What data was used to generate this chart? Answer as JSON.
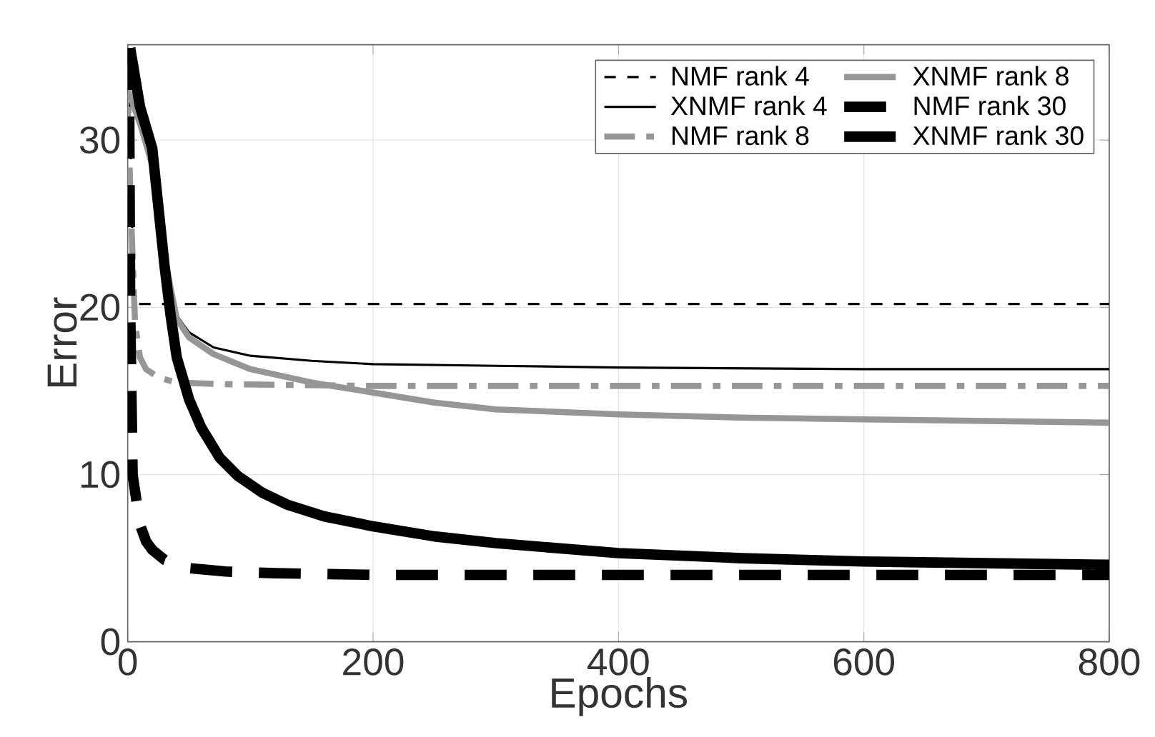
{
  "chart_data": {
    "type": "line",
    "xlabel": "Epochs",
    "ylabel": "Error",
    "xlim": [
      0,
      800
    ],
    "ylim": [
      0,
      35.7
    ],
    "xticks": [
      0,
      200,
      400,
      600,
      800
    ],
    "yticks": [
      0,
      10,
      20,
      30
    ],
    "grid": true,
    "legend": "top right",
    "marker": "none",
    "series": [
      {
        "name": "NMF rank 4",
        "color": "#000000",
        "line_style": "dashed",
        "x": [
          1,
          3,
          5,
          10,
          50,
          200,
          400,
          600,
          800
        ],
        "values": [
          35,
          27,
          20.3,
          20.2,
          20.2,
          20.2,
          20.2,
          20.2,
          20.2
        ]
      },
      {
        "name": "XNMF rank 4",
        "color": "#000000",
        "line_style": "solid",
        "x": [
          0,
          10,
          20,
          30,
          40,
          50,
          70,
          100,
          150,
          200,
          300,
          400,
          600,
          800
        ],
        "values": [
          33,
          31,
          28.5,
          23,
          19.5,
          18.5,
          17.6,
          17.1,
          16.8,
          16.6,
          16.5,
          16.4,
          16.3,
          16.3
        ]
      },
      {
        "name": "NMF rank 8",
        "color": "#969696",
        "line_style": "dashdot",
        "x": [
          0,
          3,
          6,
          10,
          15,
          25,
          40,
          80,
          200,
          400,
          600,
          800
        ],
        "values": [
          32,
          25,
          19,
          17,
          16.3,
          15.8,
          15.5,
          15.4,
          15.3,
          15.3,
          15.3,
          15.3
        ]
      },
      {
        "name": "XNMF rank 8",
        "color": "#969696",
        "line_style": "solid",
        "x": [
          0,
          10,
          20,
          30,
          40,
          50,
          70,
          100,
          150,
          200,
          250,
          300,
          400,
          500,
          600,
          700,
          800
        ],
        "values": [
          33,
          31,
          28.5,
          23,
          19.3,
          18.2,
          17.2,
          16.3,
          15.5,
          14.9,
          14.3,
          13.9,
          13.6,
          13.4,
          13.3,
          13.2,
          13.1
        ]
      },
      {
        "name": "NMF rank 30",
        "color": "#000000",
        "line_style": "dashed",
        "x": [
          1,
          2,
          4,
          10,
          15,
          20,
          30,
          50,
          80,
          120,
          200,
          400,
          600,
          800
        ],
        "values": [
          35.5,
          20,
          10,
          7,
          6,
          5.5,
          4.9,
          4.4,
          4.2,
          4.1,
          4.0,
          4.0,
          4.0,
          4.0
        ]
      },
      {
        "name": "XNMF rank 30",
        "color": "#000000",
        "line_style": "solid",
        "x": [
          2,
          10,
          20,
          25,
          30,
          35,
          40,
          50,
          60,
          75,
          90,
          110,
          130,
          160,
          200,
          250,
          300,
          400,
          500,
          600,
          700,
          800
        ],
        "values": [
          35.5,
          32,
          29.5,
          26,
          22.5,
          19.5,
          17,
          14.5,
          12.8,
          11,
          9.9,
          8.9,
          8.2,
          7.5,
          6.9,
          6.3,
          5.9,
          5.3,
          5.0,
          4.8,
          4.7,
          4.6
        ]
      }
    ]
  }
}
